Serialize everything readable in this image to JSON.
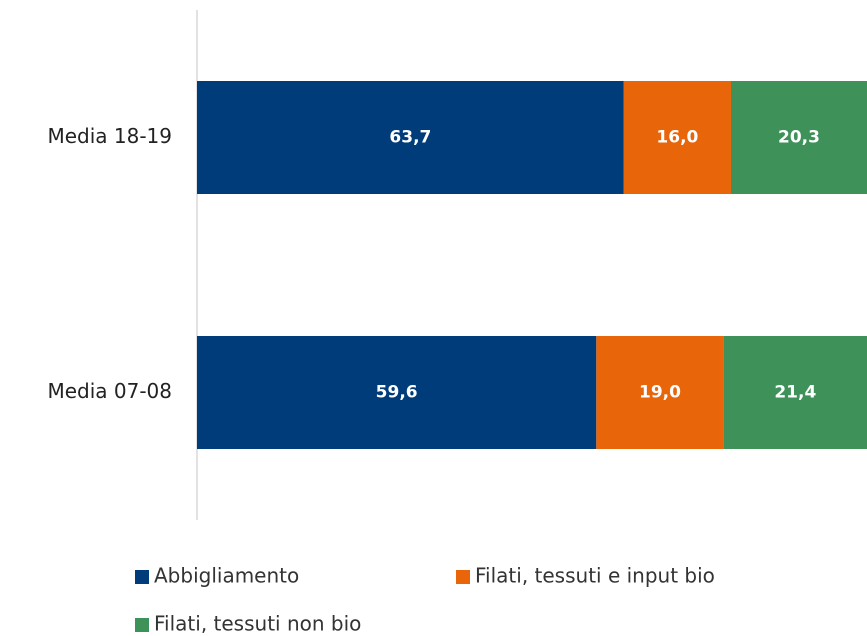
{
  "chart_data": {
    "type": "stacked_bar_horizontal",
    "categories": [
      "Media 18-19",
      "Media 07-08"
    ],
    "series": [
      {
        "name": "Abbigliamento",
        "color": "#003b7a",
        "values": [
          63.7,
          59.6
        ],
        "value_labels": [
          "63,7",
          "59,6"
        ]
      },
      {
        "name": "Filati, tessuti e input bio",
        "color": "#e8650a",
        "values": [
          16.0,
          19.0
        ],
        "value_labels": [
          "16,0",
          "19,0"
        ]
      },
      {
        "name": "Filati, tessuti non bio",
        "color": "#3f915a",
        "values": [
          20.3,
          21.4
        ],
        "value_labels": [
          "20,3",
          "21,4"
        ]
      }
    ],
    "xlim": [
      0,
      100
    ],
    "legend": "bottom"
  }
}
